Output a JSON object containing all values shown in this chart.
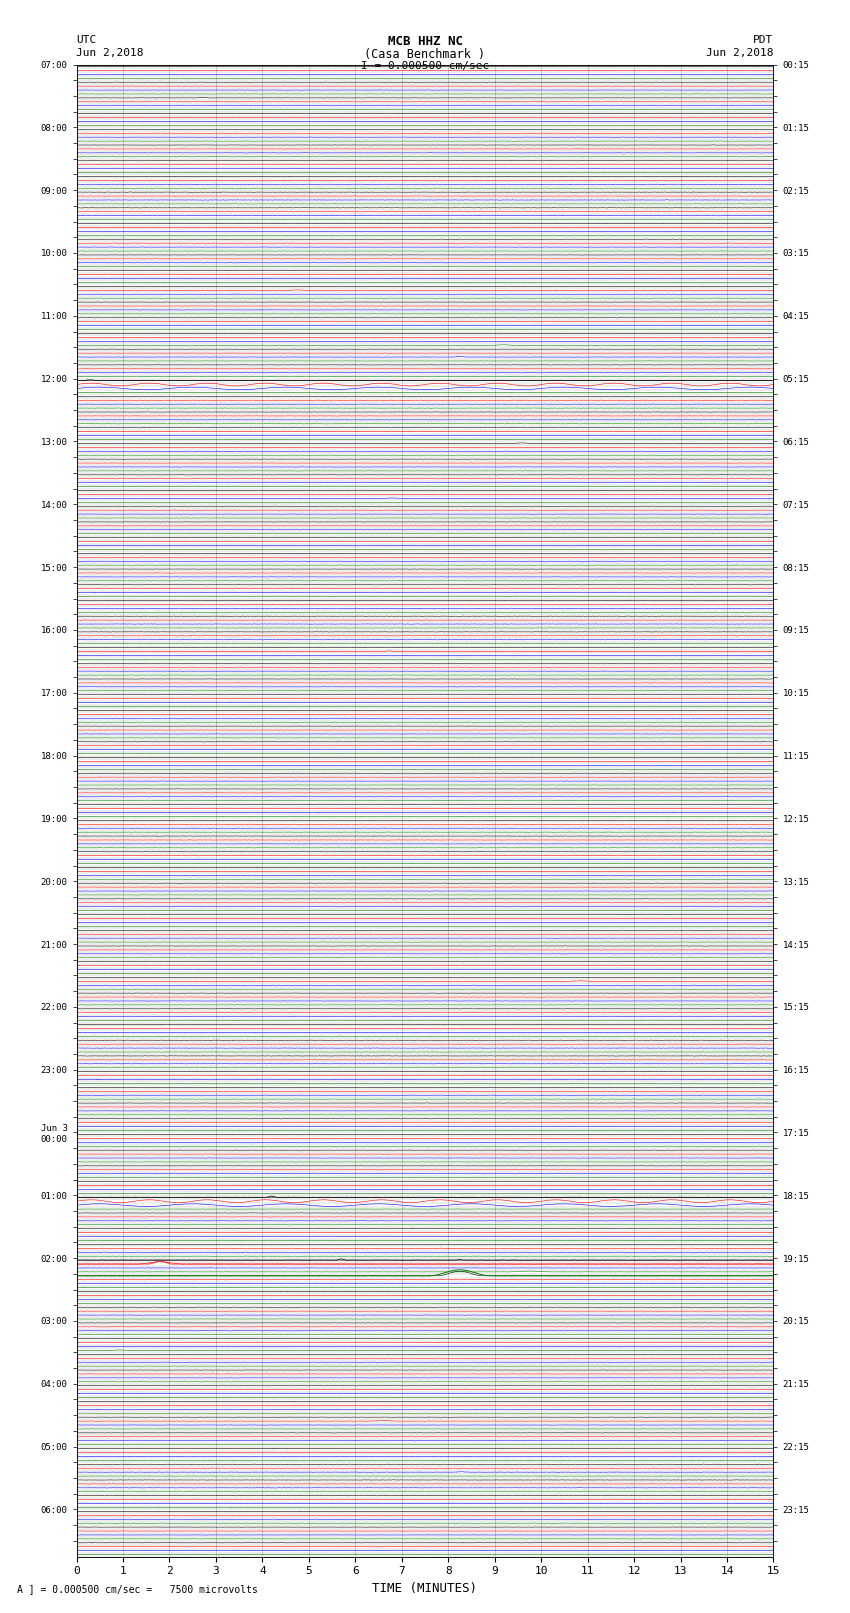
{
  "title_line1": "MCB HHZ NC",
  "title_line2": "(Casa Benchmark )",
  "title_line3": "I = 0.000500 cm/sec",
  "label_left_header": "UTC",
  "label_left_date": "Jun 2,2018",
  "label_right_header": "PDT",
  "label_right_date": "Jun 2,2018",
  "xlabel": "TIME (MINUTES)",
  "footer": "A ] = 0.000500 cm/sec =   7500 microvolts",
  "bg_color": "#ffffff",
  "grid_color": "#aaaaaa",
  "trace_colors": [
    "black",
    "red",
    "blue",
    "green"
  ],
  "minutes": 15,
  "samples": 1800,
  "left_labels": [
    "07:00",
    "",
    "",
    "",
    "08:00",
    "",
    "",
    "",
    "09:00",
    "",
    "",
    "",
    "10:00",
    "",
    "",
    "",
    "11:00",
    "",
    "",
    "",
    "12:00",
    "",
    "",
    "",
    "13:00",
    "",
    "",
    "",
    "14:00",
    "",
    "",
    "",
    "15:00",
    "",
    "",
    "",
    "16:00",
    "",
    "",
    "",
    "17:00",
    "",
    "",
    "",
    "18:00",
    "",
    "",
    "",
    "19:00",
    "",
    "",
    "",
    "20:00",
    "",
    "",
    "",
    "21:00",
    "",
    "",
    "",
    "22:00",
    "",
    "",
    "",
    "23:00",
    "",
    "",
    "",
    "Jun 3\n00:00",
    "",
    "",
    "",
    "01:00",
    "",
    "",
    "",
    "02:00",
    "",
    "",
    "",
    "03:00",
    "",
    "",
    "",
    "04:00",
    "",
    "",
    "",
    "05:00",
    "",
    "",
    "",
    "06:00",
    "",
    ""
  ],
  "right_labels": [
    "00:15",
    "",
    "",
    "",
    "01:15",
    "",
    "",
    "",
    "02:15",
    "",
    "",
    "",
    "03:15",
    "",
    "",
    "",
    "04:15",
    "",
    "",
    "",
    "05:15",
    "",
    "",
    "",
    "06:15",
    "",
    "",
    "",
    "07:15",
    "",
    "",
    "",
    "08:15",
    "",
    "",
    "",
    "09:15",
    "",
    "",
    "",
    "10:15",
    "",
    "",
    "",
    "11:15",
    "",
    "",
    "",
    "12:15",
    "",
    "",
    "",
    "13:15",
    "",
    "",
    "",
    "14:15",
    "",
    "",
    "",
    "15:15",
    "",
    "",
    "",
    "16:15",
    "",
    "",
    "",
    "17:15",
    "",
    "",
    "",
    "18:15",
    "",
    "",
    "",
    "19:15",
    "",
    "",
    "",
    "20:15",
    "",
    "",
    "",
    "21:15",
    "",
    "",
    "",
    "22:15",
    "",
    "",
    "",
    "23:15",
    ""
  ]
}
